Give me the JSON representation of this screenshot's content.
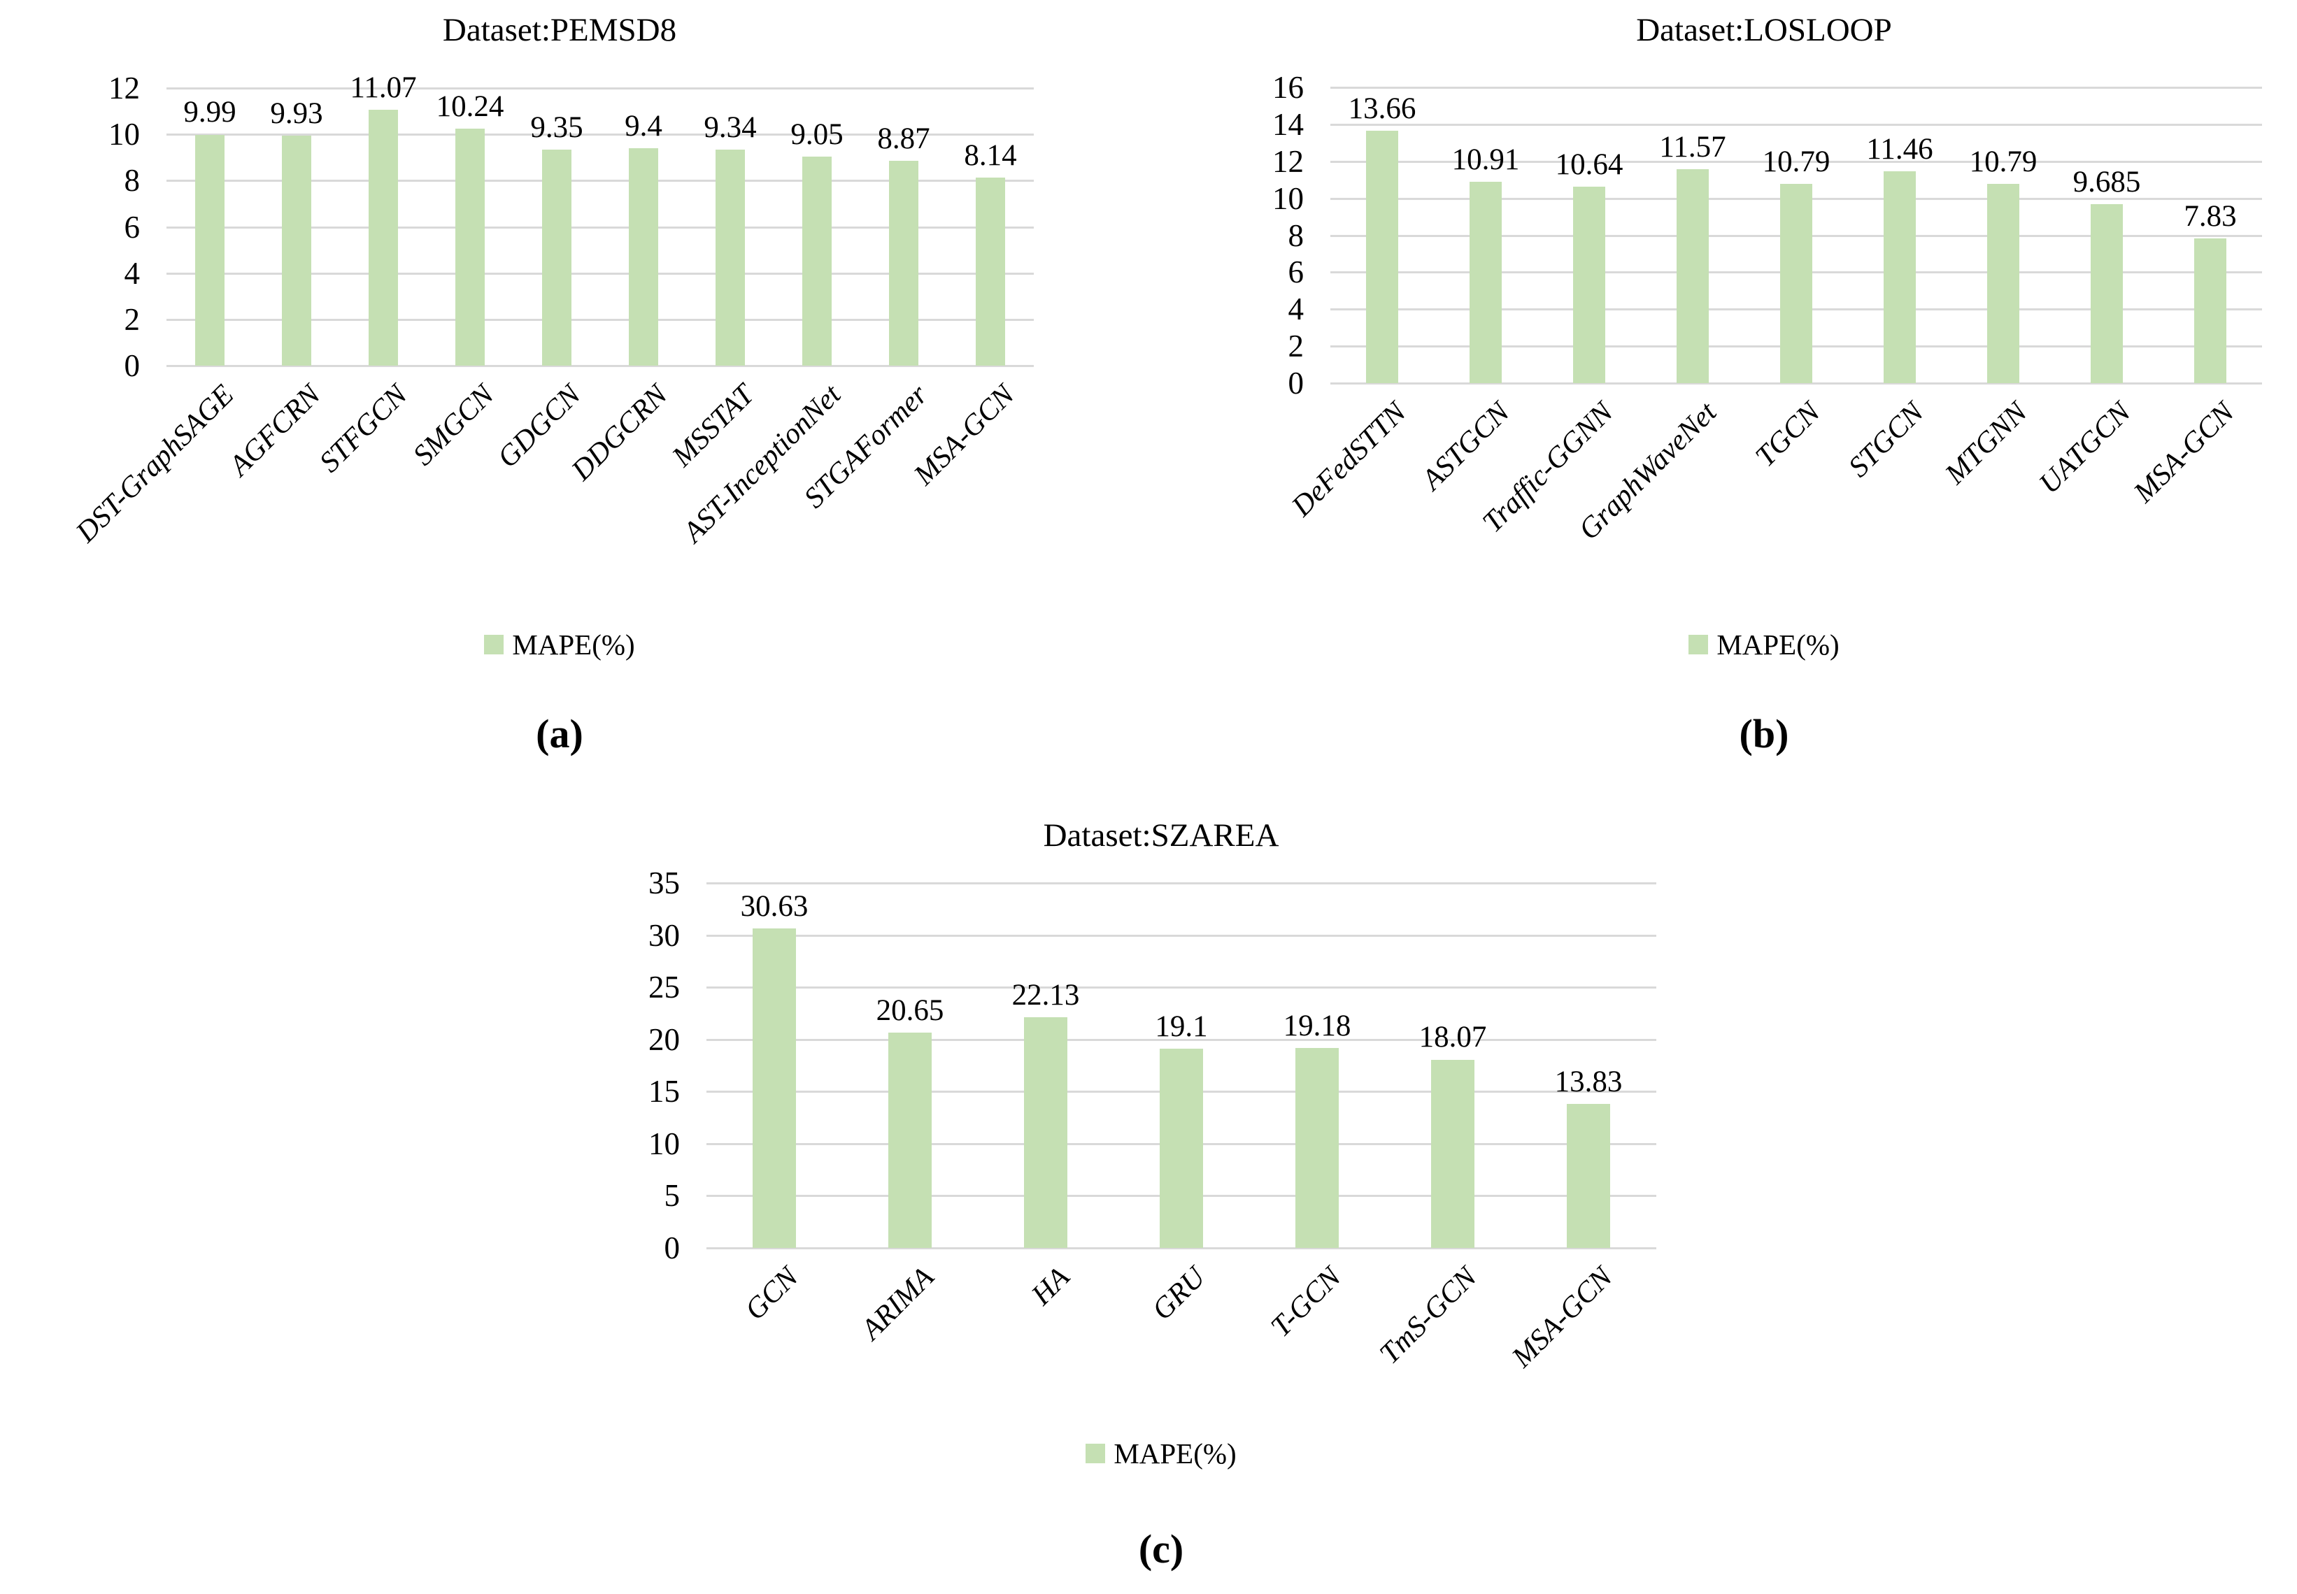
{
  "legend_label": "MAPE(%)",
  "colors": {
    "bar_fill": "#c5e0b3",
    "gridline": "#d9d9d9",
    "text": "#000000",
    "background": "#ffffff"
  },
  "chart_data": [
    {
      "type": "bar",
      "title": "Dataset:PEMSD8",
      "caption": "(a)",
      "categories": [
        "DST-GraphSAGE",
        "AGFCRN",
        "STFGCN",
        "SMGCN",
        "GDGCN",
        "DDGCRN",
        "MSSTAT",
        "AST-InceptionNet",
        "STGAFormer",
        "MSA-GCN"
      ],
      "values": [
        9.99,
        9.93,
        11.07,
        10.24,
        9.35,
        9.4,
        9.34,
        9.05,
        8.87,
        8.14
      ],
      "series": [
        {
          "name": "MAPE(%)",
          "values": [
            9.99,
            9.93,
            11.07,
            10.24,
            9.35,
            9.4,
            9.34,
            9.05,
            8.87,
            8.14
          ]
        }
      ],
      "xlabel": "",
      "ylabel": "",
      "ylim": [
        0,
        12
      ],
      "ytick_step": 2,
      "grid": true,
      "legend_position": "bottom"
    },
    {
      "type": "bar",
      "title": "Dataset:LOSLOOP",
      "caption": "(b)",
      "categories": [
        "DeFedSTTN",
        "ASTGCN",
        "Traffic-GGNN",
        "GraphWaveNet",
        "TGCN",
        "STGCN",
        "MTGNN",
        "UATGCN",
        "MSA-GCN"
      ],
      "values": [
        13.66,
        10.91,
        10.64,
        11.57,
        10.79,
        11.46,
        10.79,
        9.685,
        7.83
      ],
      "series": [
        {
          "name": "MAPE(%)",
          "values": [
            13.66,
            10.91,
            10.64,
            11.57,
            10.79,
            11.46,
            10.79,
            9.685,
            7.83
          ]
        }
      ],
      "xlabel": "",
      "ylabel": "",
      "ylim": [
        0,
        16
      ],
      "ytick_step": 2,
      "grid": true,
      "legend_position": "bottom"
    },
    {
      "type": "bar",
      "title": "Dataset:SZAREA",
      "caption": "(c)",
      "categories": [
        "GCN",
        "ARIMA",
        "HA",
        "GRU",
        "T-GCN",
        "TmS-GCN",
        "MSA-GCN"
      ],
      "values": [
        30.63,
        20.65,
        22.13,
        19.1,
        19.18,
        18.07,
        13.83
      ],
      "series": [
        {
          "name": "MAPE(%)",
          "values": [
            30.63,
            20.65,
            22.13,
            19.1,
            19.18,
            18.07,
            13.83
          ]
        }
      ],
      "xlabel": "",
      "ylabel": "",
      "ylim": [
        0,
        35
      ],
      "ytick_step": 5,
      "grid": true,
      "legend_position": "bottom"
    }
  ]
}
